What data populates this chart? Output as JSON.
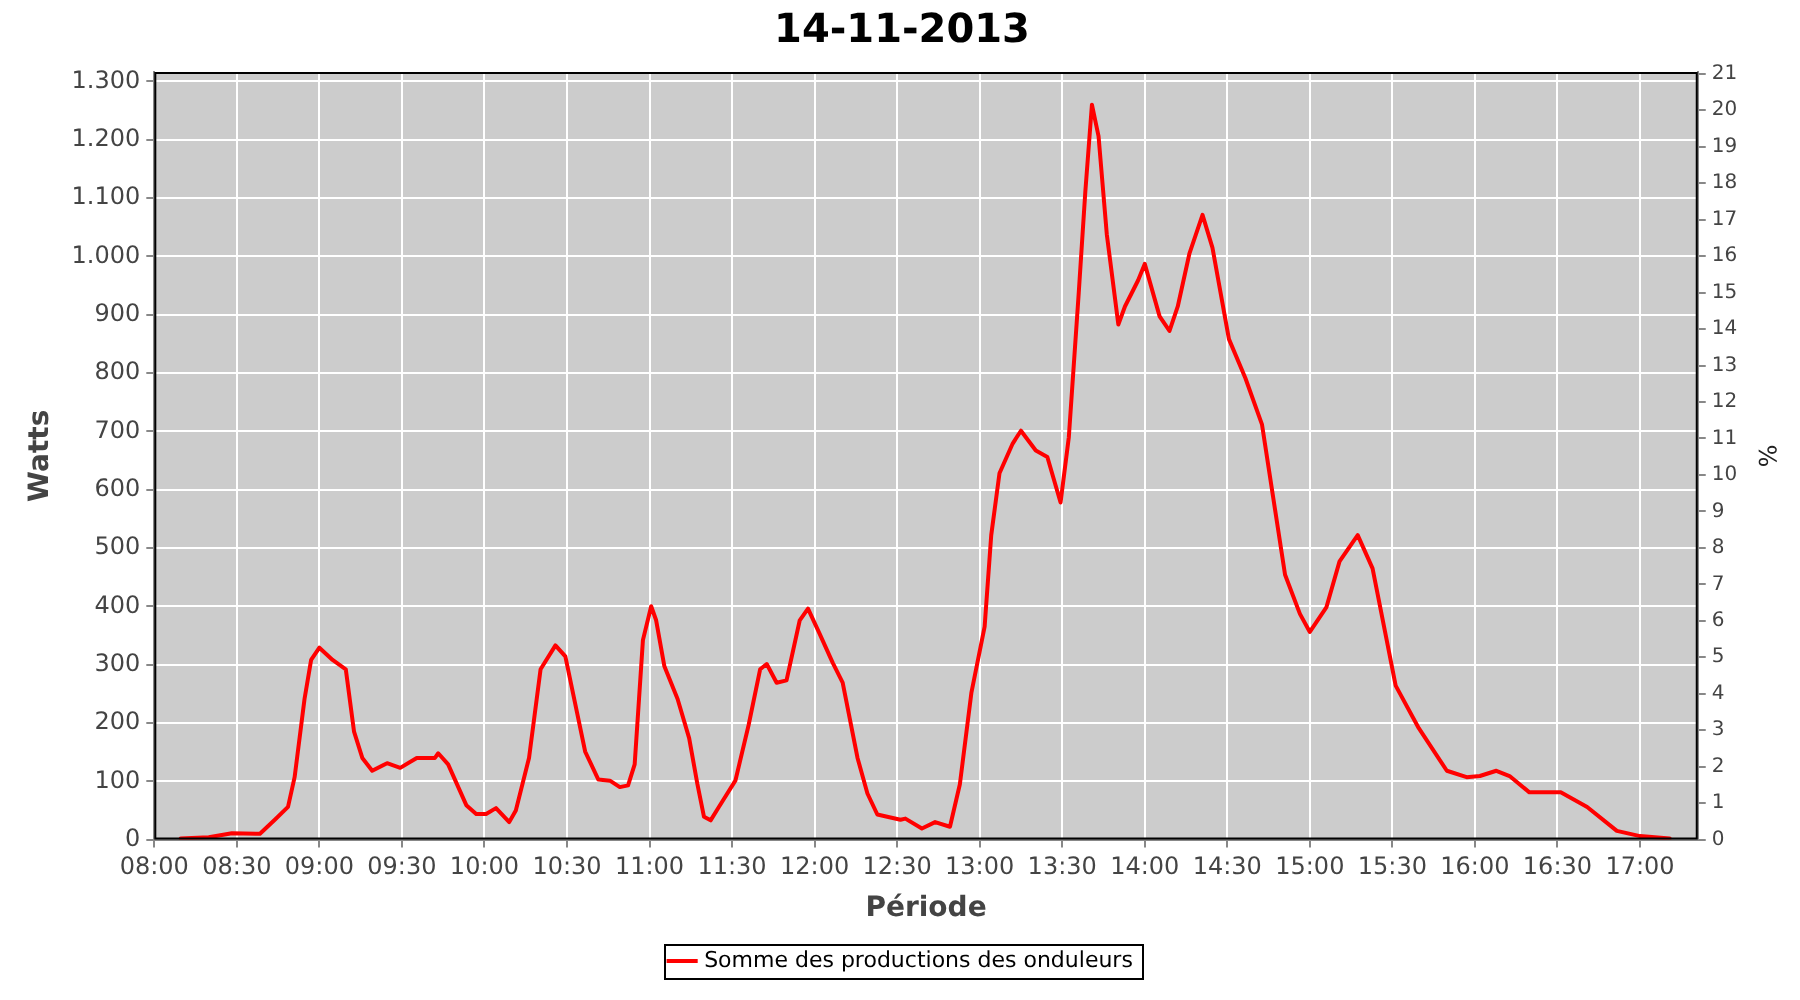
{
  "chart_data": {
    "type": "line",
    "title": "14-11-2013",
    "xlabel": "Période",
    "ylabel": "Watts",
    "y2label": "%",
    "xlim": [
      8,
      17.35
    ],
    "xticks": [
      {
        "value": 8,
        "label": "08:00"
      },
      {
        "value": 8.5,
        "label": "08:30"
      },
      {
        "value": 9,
        "label": "09:00"
      },
      {
        "value": 9.5,
        "label": "09:30"
      },
      {
        "value": 10,
        "label": "10:00"
      },
      {
        "value": 10.5,
        "label": "10:30"
      },
      {
        "value": 11,
        "label": "11:00"
      },
      {
        "value": 11.5,
        "label": "11:30"
      },
      {
        "value": 12,
        "label": "12:00"
      },
      {
        "value": 12.5,
        "label": "12:30"
      },
      {
        "value": 13,
        "label": "13:00"
      },
      {
        "value": 13.5,
        "label": "13:30"
      },
      {
        "value": 14,
        "label": "14:00"
      },
      {
        "value": 14.5,
        "label": "14:30"
      },
      {
        "value": 15,
        "label": "15:00"
      },
      {
        "value": 15.5,
        "label": "15:30"
      },
      {
        "value": 16,
        "label": "16:00"
      },
      {
        "value": 16.5,
        "label": "16:30"
      },
      {
        "value": 17,
        "label": "17:00"
      }
    ],
    "ylim": [
      0,
      1316
    ],
    "yticks": [
      0,
      100,
      200,
      300,
      400,
      500,
      600,
      700,
      800,
      900,
      {
        "value": 1000,
        "label": "1.000"
      },
      {
        "value": 1100,
        "label": "1.100"
      },
      {
        "value": 1200,
        "label": "1.200"
      },
      {
        "value": 1300,
        "label": "1.300"
      }
    ],
    "y2lim": [
      0,
      21.05
    ],
    "y2ticks": [
      0,
      1,
      2,
      3,
      4,
      5,
      6,
      7,
      8,
      9,
      10,
      11,
      12,
      13,
      14,
      15,
      16,
      17,
      18,
      19,
      20,
      21
    ],
    "grid": true,
    "legend": "bottom",
    "marker": "none",
    "line_style": "solid",
    "series": [
      {
        "name": "Somme des productions des onduleurs",
        "color": "#ff0000",
        "x": [
          8.16,
          8.33,
          8.47,
          8.64,
          8.73,
          8.81,
          8.85,
          8.91,
          8.95,
          9.0,
          9.08,
          9.16,
          9.21,
          9.26,
          9.32,
          9.41,
          9.49,
          9.59,
          9.7,
          9.72,
          9.78,
          9.89,
          9.95,
          10.01,
          10.07,
          10.15,
          10.19,
          10.27,
          10.34,
          10.43,
          10.49,
          10.56,
          10.61,
          10.69,
          10.76,
          10.82,
          10.87,
          10.91,
          10.96,
          11.01,
          11.04,
          11.09,
          11.17,
          11.24,
          11.29,
          11.33,
          11.37,
          11.42,
          11.52,
          11.6,
          11.67,
          11.71,
          11.77,
          11.83,
          11.91,
          11.96,
          12.03,
          12.11,
          12.17,
          12.26,
          12.32,
          12.38,
          12.52,
          12.55,
          12.65,
          12.73,
          12.82,
          12.88,
          12.95,
          13.03,
          13.07,
          13.12,
          13.2,
          13.25,
          13.34,
          13.41,
          13.49,
          13.54,
          13.6,
          13.64,
          13.68,
          13.72,
          13.77,
          13.84,
          13.88,
          13.96,
          14.0,
          14.09,
          14.15,
          14.2,
          14.27,
          14.35,
          14.41,
          14.51,
          14.61,
          14.71,
          14.85,
          14.94,
          15.0,
          15.1,
          15.18,
          15.29,
          15.38,
          15.52,
          15.66,
          15.83,
          15.95,
          16.03,
          16.13,
          16.21,
          16.33,
          16.52,
          16.68,
          16.86,
          17.0,
          17.18
        ],
        "values": [
          2,
          4,
          11,
          10,
          34,
          56,
          107,
          241,
          308,
          329,
          308,
          292,
          185,
          140,
          118,
          131,
          123,
          140,
          140,
          148,
          129,
          59,
          44,
          44,
          54,
          30,
          50,
          140,
          292,
          333,
          314,
          219,
          151,
          103,
          101,
          90,
          93,
          129,
          342,
          400,
          376,
          297,
          241,
          174,
          95,
          39,
          33,
          56,
          101,
          196,
          292,
          301,
          269,
          273,
          376,
          396,
          353,
          303,
          269,
          140,
          79,
          43,
          34,
          36,
          19,
          30,
          22,
          95,
          252,
          365,
          522,
          628,
          679,
          701,
          667,
          656,
          578,
          690,
          937,
          1111,
          1260,
          1206,
          1038,
          883,
          914,
          959,
          987,
          897,
          872,
          914,
          1004,
          1071,
          1015,
          858,
          791,
          712,
          454,
          387,
          356,
          398,
          477,
          522,
          465,
          264,
          191,
          118,
          107,
          109,
          118,
          109,
          81,
          81,
          56,
          15,
          6,
          2
        ]
      }
    ]
  }
}
